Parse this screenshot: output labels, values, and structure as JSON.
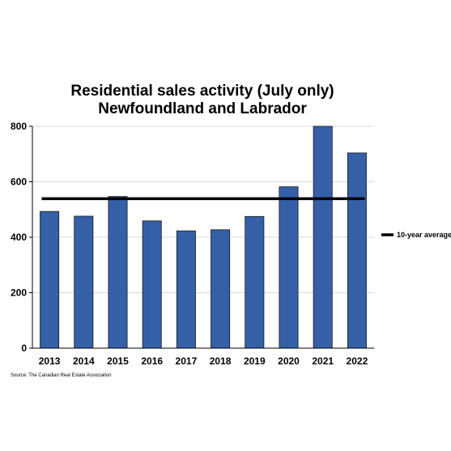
{
  "chart_data": {
    "type": "bar",
    "title": "Residential sales activity (July only)",
    "subtitle": "Newfoundland and Labrador",
    "categories": [
      "2013",
      "2014",
      "2015",
      "2016",
      "2017",
      "2018",
      "2019",
      "2020",
      "2021",
      "2022"
    ],
    "series": [
      {
        "values": [
          493,
          476,
          547,
          459,
          423,
          427,
          475,
          582,
          800,
          704
        ]
      }
    ],
    "average_line": {
      "name": "10-year average",
      "value": 539
    },
    "ylim": [
      0,
      800
    ],
    "yticks": [
      0,
      200,
      400,
      600,
      800
    ],
    "grid": true,
    "legend_position": "right",
    "xlabel": "",
    "ylabel": "",
    "source": "Source: The Canadian Real Estate Association",
    "colors": {
      "bar": "#3560a8",
      "bar_edge": "#1a1a1a",
      "average": "#000000",
      "grid": "#d9d9d9"
    }
  }
}
